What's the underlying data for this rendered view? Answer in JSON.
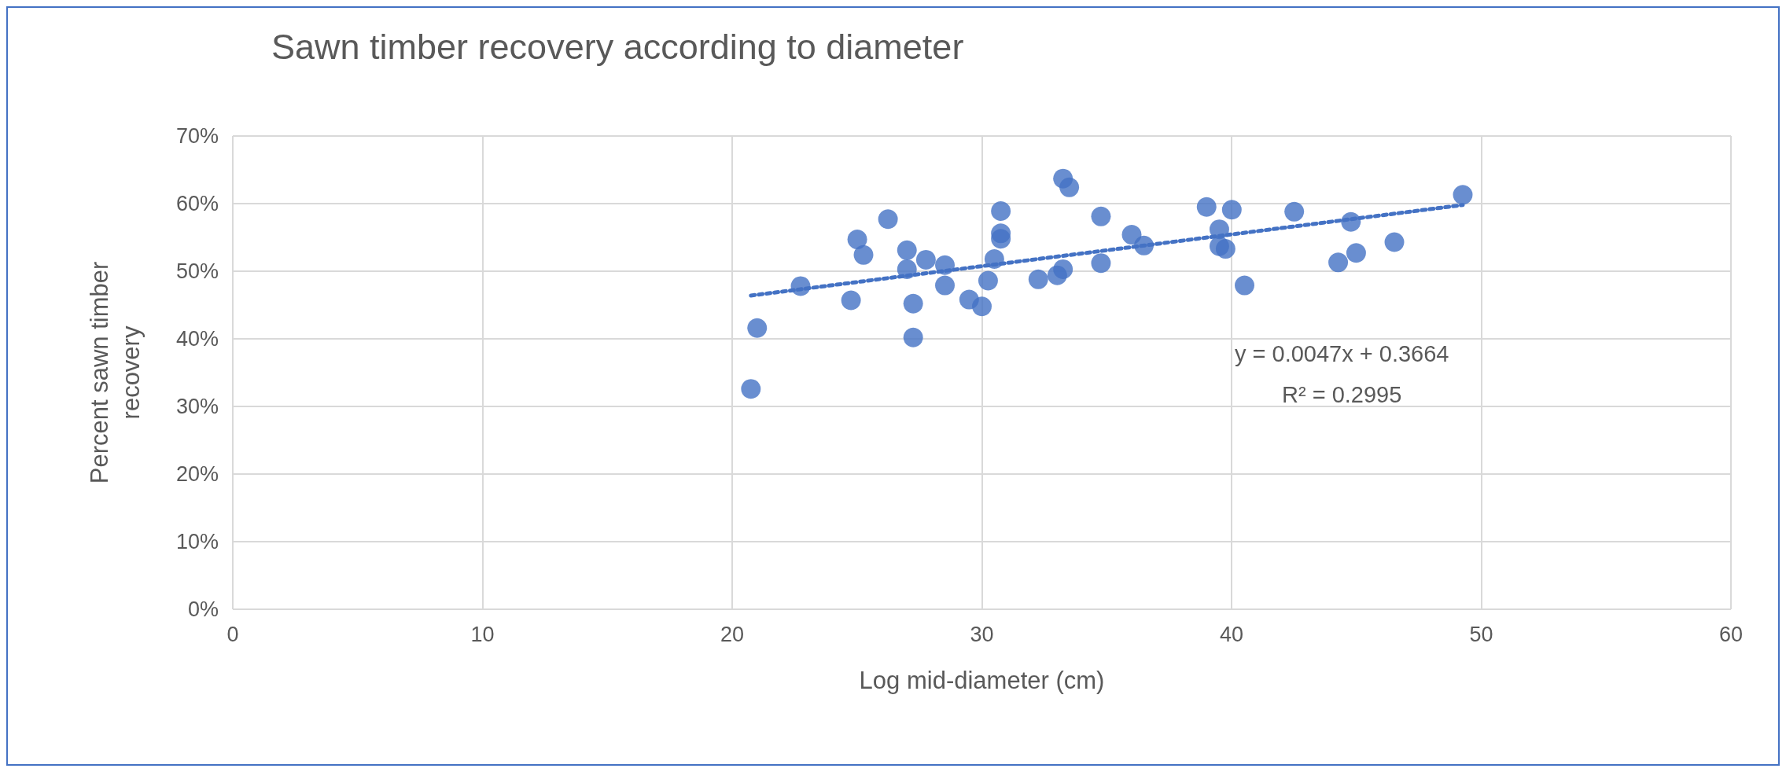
{
  "chart_data": {
    "type": "scatter",
    "title": "Sawn timber recovery according to diameter",
    "xlabel": "Log mid-diameter (cm)",
    "ylabel": "Percent sawn timber recovery",
    "annotations": [
      "y = 0.0047x + 0.3664",
      "R² = 0.2995"
    ],
    "series": [
      {
        "color": "#4472c4",
        "marker": "circle",
        "x": [
          20.75,
          21.0,
          22.74,
          24.76,
          25.01,
          25.26,
          26.24,
          27.0,
          27.0,
          27.25,
          27.25,
          27.76,
          28.52,
          28.52,
          29.49,
          30.0,
          30.25,
          30.5,
          30.76,
          30.76,
          30.76,
          32.26,
          33.02,
          33.25,
          33.25,
          33.5,
          34.77,
          34.77,
          36.0,
          36.49,
          39.0,
          39.51,
          39.51,
          39.76,
          40.01,
          40.52,
          42.51,
          44.27,
          44.78,
          44.99,
          46.52,
          49.26
        ],
        "values": [
          32.6,
          41.6,
          47.8,
          45.7,
          54.7,
          52.4,
          57.7,
          53.1,
          50.3,
          45.2,
          40.2,
          51.7,
          50.9,
          47.9,
          45.8,
          44.8,
          48.6,
          51.8,
          58.9,
          55.6,
          54.8,
          48.8,
          49.4,
          50.3,
          63.7,
          62.4,
          58.1,
          51.2,
          55.4,
          53.8,
          59.5,
          56.2,
          53.7,
          53.3,
          59.1,
          47.9,
          58.8,
          51.3,
          57.3,
          52.7,
          54.3,
          61.3
        ]
      },
      {
        "type": "line",
        "color": "#4472c4",
        "marker": "none",
        "line_style": "dotted",
        "x": [
          20.75,
          49.26
        ],
        "values": [
          46.4,
          59.8
        ]
      }
    ],
    "xlim": [
      0,
      60
    ],
    "xticks": [
      0,
      10,
      20,
      30,
      40,
      50,
      60
    ],
    "ylim": [
      0,
      70
    ],
    "yticks": [
      {
        "value": 0,
        "label": "0%"
      },
      {
        "value": 10,
        "label": "10%"
      },
      {
        "value": 20,
        "label": "20%"
      },
      {
        "value": 30,
        "label": "30%"
      },
      {
        "value": 40,
        "label": "40%"
      },
      {
        "value": 50,
        "label": "50%"
      },
      {
        "value": 60,
        "label": "60%"
      },
      {
        "value": 70,
        "label": "70%"
      }
    ],
    "grid": true
  }
}
